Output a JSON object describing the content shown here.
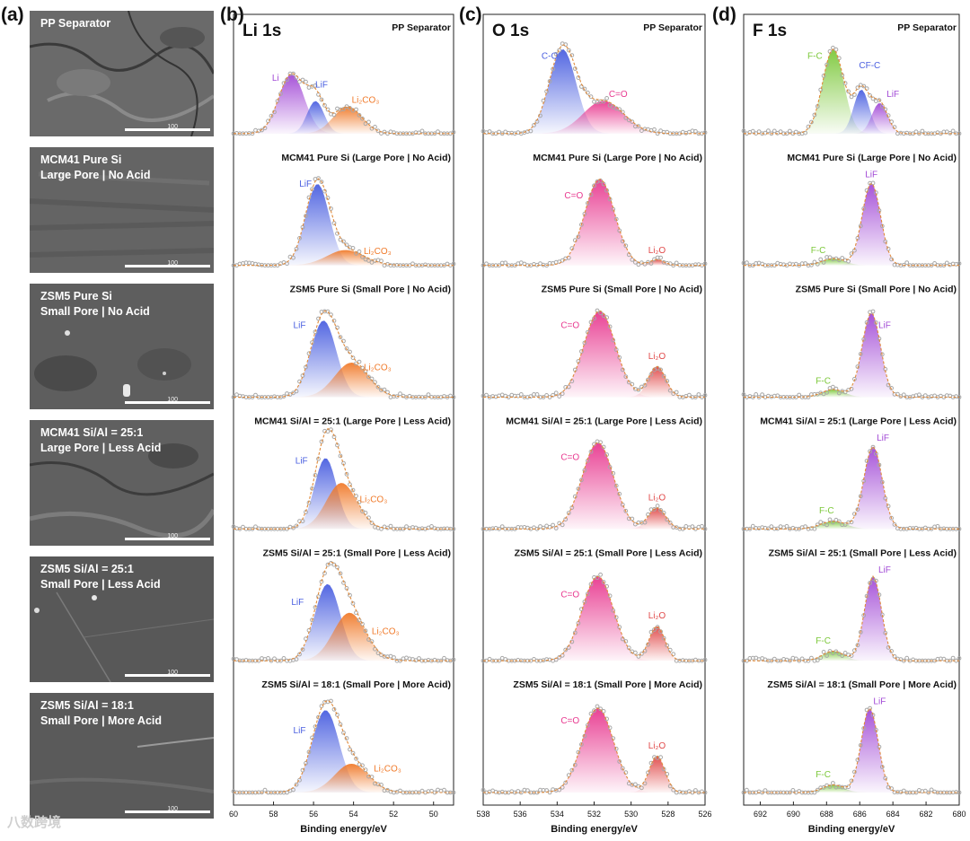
{
  "panel_letters": {
    "a": "(a)",
    "b": "(b)",
    "c": "(c)",
    "d": "(d)"
  },
  "samples": [
    {
      "title": "PP Separator",
      "sem_line1": "PP Separator",
      "sem_line2": ""
    },
    {
      "title": "MCM41 Pure Si (Large Pore | No Acid)",
      "sem_line1": "MCM41 Pure Si",
      "sem_line2": "Large Pore | No Acid"
    },
    {
      "title": "ZSM5 Pure Si (Small Pore | No Acid)",
      "sem_line1": "ZSM5 Pure Si",
      "sem_line2": "Small Pore | No Acid"
    },
    {
      "title": "MCM41 Si/Al = 25:1 (Large Pore | Less Acid)",
      "sem_line1": "MCM41 Si/Al = 25:1",
      "sem_line2": "Large Pore | Less Acid"
    },
    {
      "title": "ZSM5 Si/Al = 25:1 (Small Pore | Less Acid)",
      "sem_line1": "ZSM5 Si/Al = 25:1",
      "sem_line2": "Small Pore | Less Acid"
    },
    {
      "title": "ZSM5 Si/Al = 18:1 (Small Pore | More Acid)",
      "sem_line1": "ZSM5 Si/Al = 18:1",
      "sem_line2": "Small Pore | More Acid"
    }
  ],
  "sem_scale_label": "100",
  "watermark": "八数跨境",
  "colors": {
    "blue": "#4a5fe0",
    "orange": "#f07a2a",
    "purple": "#a24ad6",
    "pink": "#e8388f",
    "green": "#7cc83a",
    "red": "#e04848",
    "envelope": "#e08a3a",
    "raw": "#a8a8a8"
  },
  "chart_data": [
    {
      "type": "area",
      "panel": "b",
      "title": "Li 1s",
      "xlabel": "Binding energy/eV",
      "xlim": [
        60,
        49
      ],
      "xdir": "reversed",
      "xticks": [
        60,
        58,
        56,
        54,
        52,
        50
      ],
      "rows": [
        {
          "sample": "PP Separator",
          "peaks": [
            {
              "label": "Li",
              "center": 57.1,
              "fwhm": 1.5,
              "height": 0.62,
              "color": "purple"
            },
            {
              "label": "LiF",
              "center": 55.9,
              "fwhm": 1.0,
              "height": 0.34,
              "color": "blue"
            },
            {
              "label": "Li2CO3",
              "center": 54.3,
              "fwhm": 1.7,
              "height": 0.28,
              "color": "orange"
            }
          ],
          "labels": [
            {
              "text": "Li",
              "x": 57.9,
              "y": 0.55,
              "color": "purple"
            },
            {
              "text": "LiF",
              "x": 55.6,
              "y": 0.48,
              "color": "blue"
            },
            {
              "text": "Li₂CO₃",
              "x": 53.4,
              "y": 0.32,
              "color": "orange"
            }
          ]
        },
        {
          "sample": "MCM41 Pure Si (Large Pore | No Acid)",
          "peaks": [
            {
              "label": "LiF",
              "center": 55.8,
              "fwhm": 1.4,
              "height": 0.85,
              "color": "blue"
            },
            {
              "label": "Li2CO3",
              "center": 54.4,
              "fwhm": 2.2,
              "height": 0.16,
              "color": "orange"
            }
          ],
          "labels": [
            {
              "text": "LiF",
              "x": 56.4,
              "y": 0.82,
              "color": "blue"
            },
            {
              "text": "Li₂CO₃",
              "x": 52.8,
              "y": 0.12,
              "color": "orange"
            }
          ]
        },
        {
          "sample": "ZSM5 Pure Si (Small Pore | No Acid)",
          "peaks": [
            {
              "label": "LiF",
              "center": 55.5,
              "fwhm": 1.5,
              "height": 0.8,
              "color": "blue"
            },
            {
              "label": "Li2CO3",
              "center": 54.1,
              "fwhm": 2.0,
              "height": 0.36,
              "color": "orange"
            }
          ],
          "labels": [
            {
              "text": "LiF",
              "x": 56.7,
              "y": 0.72,
              "color": "blue"
            },
            {
              "text": "Li₂CO₃",
              "x": 52.8,
              "y": 0.28,
              "color": "orange"
            }
          ]
        },
        {
          "sample": "MCM41 Si/Al = 25:1 (Large Pore | Less Acid)",
          "peaks": [
            {
              "label": "LiF",
              "center": 55.4,
              "fwhm": 1.3,
              "height": 0.74,
              "color": "blue"
            },
            {
              "label": "Li2CO3",
              "center": 54.6,
              "fwhm": 1.8,
              "height": 0.48,
              "color": "orange"
            }
          ],
          "labels": [
            {
              "text": "LiF",
              "x": 56.6,
              "y": 0.68,
              "color": "blue"
            },
            {
              "text": "Li₂CO₃",
              "x": 53.0,
              "y": 0.28,
              "color": "orange"
            }
          ]
        },
        {
          "sample": "ZSM5 Si/Al = 25:1 (Small Pore | Less Acid)",
          "peaks": [
            {
              "label": "LiF",
              "center": 55.3,
              "fwhm": 1.5,
              "height": 0.8,
              "color": "blue"
            },
            {
              "label": "Li2CO3",
              "center": 54.2,
              "fwhm": 1.9,
              "height": 0.5,
              "color": "orange"
            }
          ],
          "labels": [
            {
              "text": "LiF",
              "x": 56.8,
              "y": 0.58,
              "color": "blue"
            },
            {
              "text": "Li₂CO₃",
              "x": 52.4,
              "y": 0.28,
              "color": "orange"
            }
          ]
        },
        {
          "sample": "ZSM5 Si/Al = 18:1 (Small Pore | More Acid)",
          "peaks": [
            {
              "label": "LiF",
              "center": 55.4,
              "fwhm": 1.6,
              "height": 0.86,
              "color": "blue"
            },
            {
              "label": "Li2CO3",
              "center": 54.1,
              "fwhm": 2.0,
              "height": 0.3,
              "color": "orange"
            }
          ],
          "labels": [
            {
              "text": "LiF",
              "x": 56.7,
              "y": 0.62,
              "color": "blue"
            },
            {
              "text": "Li₂CO₃",
              "x": 52.3,
              "y": 0.22,
              "color": "orange"
            }
          ]
        }
      ]
    },
    {
      "type": "area",
      "panel": "c",
      "title": "O 1s",
      "xlabel": "Binding energy/eV",
      "xlim": [
        538,
        526
      ],
      "xdir": "reversed",
      "xticks": [
        538,
        536,
        534,
        532,
        530,
        528,
        526
      ],
      "rows": [
        {
          "sample": "PP Separator",
          "peaks": [
            {
              "label": "C-O",
              "center": 533.7,
              "fwhm": 1.7,
              "height": 0.88,
              "color": "blue"
            },
            {
              "label": "C=O",
              "center": 531.5,
              "fwhm": 2.6,
              "height": 0.34,
              "color": "pink"
            }
          ],
          "labels": [
            {
              "text": "C-O",
              "x": 534.4,
              "y": 0.78,
              "color": "blue"
            },
            {
              "text": "C=O",
              "x": 530.7,
              "y": 0.38,
              "color": "pink"
            }
          ]
        },
        {
          "sample": "MCM41 Pure Si (Large Pore | No Acid)",
          "peaks": [
            {
              "label": "C=O",
              "center": 531.7,
              "fwhm": 1.9,
              "height": 0.9,
              "color": "pink"
            },
            {
              "label": "Li2O",
              "center": 528.6,
              "fwhm": 0.9,
              "height": 0.06,
              "color": "red"
            }
          ],
          "labels": [
            {
              "text": "C=O",
              "x": 533.1,
              "y": 0.7,
              "color": "pink"
            },
            {
              "text": "Li₂O",
              "x": 528.6,
              "y": 0.13,
              "color": "red"
            }
          ]
        },
        {
          "sample": "ZSM5 Pure Si (Small Pore | No Acid)",
          "peaks": [
            {
              "label": "C=O",
              "center": 531.7,
              "fwhm": 2.0,
              "height": 0.9,
              "color": "pink"
            },
            {
              "label": "Li2O",
              "center": 528.6,
              "fwhm": 1.1,
              "height": 0.32,
              "color": "red"
            }
          ],
          "labels": [
            {
              "text": "C=O",
              "x": 533.3,
              "y": 0.72,
              "color": "pink"
            },
            {
              "text": "Li₂O",
              "x": 528.6,
              "y": 0.4,
              "color": "red"
            }
          ]
        },
        {
          "sample": "MCM41 Si/Al = 25:1 (Large Pore | Less Acid)",
          "peaks": [
            {
              "label": "C=O",
              "center": 531.8,
              "fwhm": 2.0,
              "height": 0.9,
              "color": "pink"
            },
            {
              "label": "Li2O",
              "center": 528.6,
              "fwhm": 1.1,
              "height": 0.22,
              "color": "red"
            }
          ],
          "labels": [
            {
              "text": "C=O",
              "x": 533.3,
              "y": 0.72,
              "color": "pink"
            },
            {
              "text": "Li₂O",
              "x": 528.6,
              "y": 0.3,
              "color": "red"
            }
          ]
        },
        {
          "sample": "ZSM5 Si/Al = 25:1 (Small Pore | Less Acid)",
          "peaks": [
            {
              "label": "C=O",
              "center": 531.8,
              "fwhm": 2.0,
              "height": 0.88,
              "color": "pink"
            },
            {
              "label": "Li2O",
              "center": 528.6,
              "fwhm": 1.0,
              "height": 0.36,
              "color": "red"
            }
          ],
          "labels": [
            {
              "text": "C=O",
              "x": 533.3,
              "y": 0.66,
              "color": "pink"
            },
            {
              "text": "Li₂O",
              "x": 528.6,
              "y": 0.44,
              "color": "red"
            }
          ]
        },
        {
          "sample": "ZSM5 Si/Al = 18:1 (Small Pore | More Acid)",
          "peaks": [
            {
              "label": "C=O",
              "center": 531.8,
              "fwhm": 2.0,
              "height": 0.88,
              "color": "pink"
            },
            {
              "label": "Li2O",
              "center": 528.6,
              "fwhm": 1.0,
              "height": 0.38,
              "color": "red"
            }
          ],
          "labels": [
            {
              "text": "C=O",
              "x": 533.3,
              "y": 0.72,
              "color": "pink"
            },
            {
              "text": "Li₂O",
              "x": 528.6,
              "y": 0.46,
              "color": "red"
            }
          ]
        }
      ]
    },
    {
      "type": "area",
      "panel": "d",
      "title": "F 1s",
      "xlabel": "Binding energy/eV",
      "xlim": [
        693,
        680
      ],
      "xdir": "reversed",
      "xticks": [
        692,
        690,
        688,
        686,
        684,
        682,
        680
      ],
      "rows": [
        {
          "sample": "PP Separator",
          "peaks": [
            {
              "label": "F-C",
              "center": 687.6,
              "fwhm": 1.5,
              "height": 0.88,
              "color": "green"
            },
            {
              "label": "CF-C",
              "center": 685.9,
              "fwhm": 1.1,
              "height": 0.46,
              "color": "blue"
            },
            {
              "label": "LiF",
              "center": 684.8,
              "fwhm": 1.1,
              "height": 0.32,
              "color": "purple"
            }
          ],
          "labels": [
            {
              "text": "F-C",
              "x": 688.7,
              "y": 0.78,
              "color": "green"
            },
            {
              "text": "CF-C",
              "x": 685.4,
              "y": 0.68,
              "color": "blue"
            },
            {
              "text": "LiF",
              "x": 684.0,
              "y": 0.38,
              "color": "purple"
            }
          ]
        },
        {
          "sample": "MCM41 Pure Si (Large Pore | No Acid)",
          "peaks": [
            {
              "label": "F-C",
              "center": 687.6,
              "fwhm": 1.6,
              "height": 0.07,
              "color": "green"
            },
            {
              "label": "LiF",
              "center": 685.3,
              "fwhm": 1.3,
              "height": 0.86,
              "color": "purple"
            }
          ],
          "labels": [
            {
              "text": "LiF",
              "x": 685.3,
              "y": 0.92,
              "color": "purple"
            },
            {
              "text": "F-C",
              "x": 688.5,
              "y": 0.13,
              "color": "green"
            }
          ]
        },
        {
          "sample": "ZSM5 Pure Si (Small Pore | No Acid)",
          "peaks": [
            {
              "label": "F-C",
              "center": 687.6,
              "fwhm": 1.6,
              "height": 0.08,
              "color": "green"
            },
            {
              "label": "LiF",
              "center": 685.3,
              "fwhm": 1.3,
              "height": 0.88,
              "color": "purple"
            }
          ],
          "labels": [
            {
              "text": "LiF",
              "x": 684.5,
              "y": 0.72,
              "color": "purple"
            },
            {
              "text": "F-C",
              "x": 688.2,
              "y": 0.14,
              "color": "green"
            }
          ]
        },
        {
          "sample": "MCM41 Si/Al = 25:1 (Large Pore | Less Acid)",
          "peaks": [
            {
              "label": "F-C",
              "center": 687.6,
              "fwhm": 1.8,
              "height": 0.08,
              "color": "green"
            },
            {
              "label": "LiF",
              "center": 685.2,
              "fwhm": 1.3,
              "height": 0.86,
              "color": "purple"
            }
          ],
          "labels": [
            {
              "text": "LiF",
              "x": 684.6,
              "y": 0.92,
              "color": "purple"
            },
            {
              "text": "F-C",
              "x": 688.0,
              "y": 0.16,
              "color": "green"
            }
          ]
        },
        {
          "sample": "ZSM5 Si/Al = 25:1 (Small Pore | Less Acid)",
          "peaks": [
            {
              "label": "F-C",
              "center": 687.6,
              "fwhm": 1.5,
              "height": 0.1,
              "color": "green"
            },
            {
              "label": "LiF",
              "center": 685.2,
              "fwhm": 1.2,
              "height": 0.88,
              "color": "purple"
            }
          ],
          "labels": [
            {
              "text": "LiF",
              "x": 684.5,
              "y": 0.92,
              "color": "purple"
            },
            {
              "text": "F-C",
              "x": 688.2,
              "y": 0.18,
              "color": "green"
            }
          ]
        },
        {
          "sample": "ZSM5 Si/Al = 18:1 (Small Pore | More Acid)",
          "peaks": [
            {
              "label": "F-C",
              "center": 687.6,
              "fwhm": 1.5,
              "height": 0.08,
              "color": "green"
            },
            {
              "label": "LiF",
              "center": 685.4,
              "fwhm": 1.2,
              "height": 0.88,
              "color": "purple"
            }
          ],
          "labels": [
            {
              "text": "LiF",
              "x": 684.8,
              "y": 0.92,
              "color": "purple"
            },
            {
              "text": "F-C",
              "x": 688.2,
              "y": 0.16,
              "color": "green"
            }
          ]
        }
      ]
    }
  ]
}
